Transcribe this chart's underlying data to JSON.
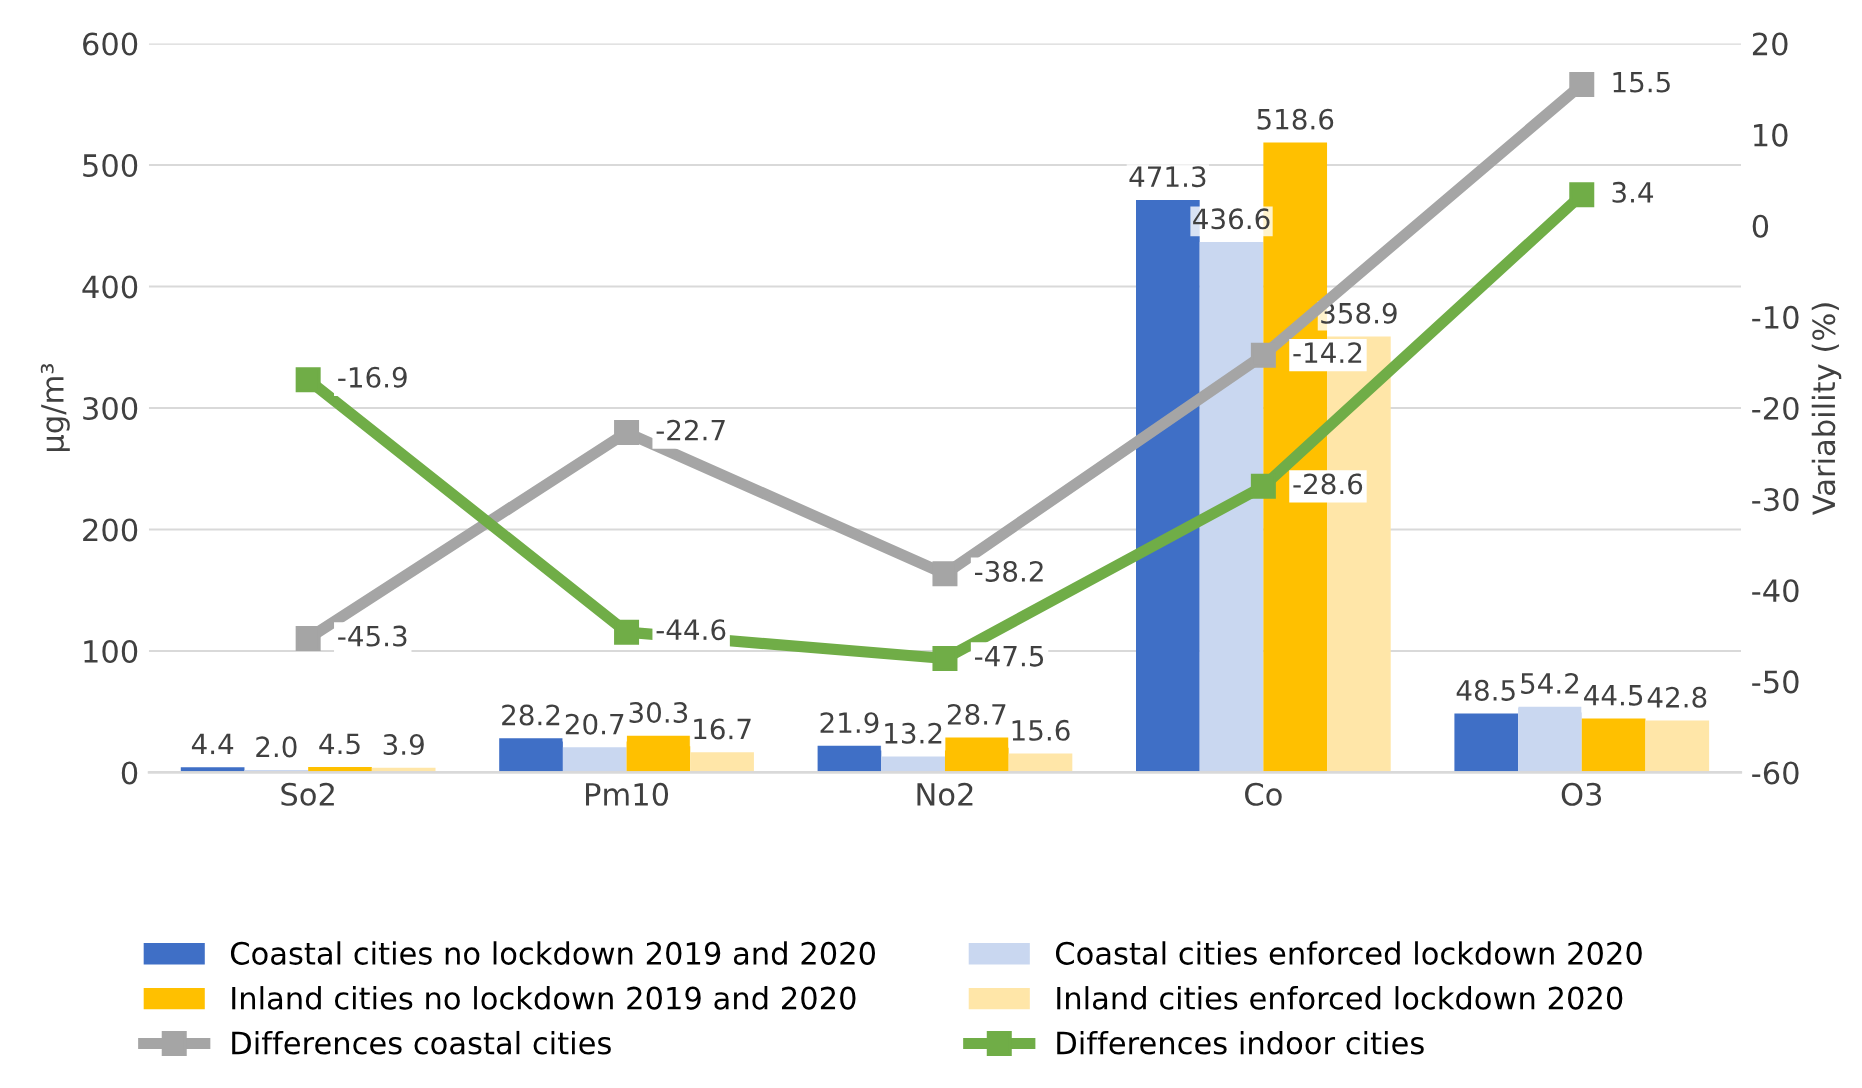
{
  "chart_data": {
    "type": "bar",
    "categories": [
      "So2",
      "Pm10",
      "No2",
      "Co",
      "O3"
    ],
    "ylabel": "µg/m³",
    "y2label": "Variability (%)",
    "ylim": [
      0,
      600
    ],
    "yticks": [
      0,
      100,
      200,
      300,
      400,
      500,
      600
    ],
    "y2lim": [
      -60,
      20
    ],
    "y2ticks": [
      -60,
      -50,
      -40,
      -30,
      -20,
      -10,
      0,
      10,
      20
    ],
    "grid": "y",
    "legend": "bottom",
    "data_labels": true,
    "marker": "square",
    "line_style": "solid",
    "series": [
      {
        "name": "Coastal cities no lockdown 2019 and 2020",
        "color": "#3f6fc6",
        "values": [
          4.4,
          28.2,
          21.9,
          471.3,
          48.5
        ]
      },
      {
        "name": "Coastal cities enforced lockdown 2020",
        "color": "#c9d7f0",
        "values": [
          2.0,
          20.7,
          13.2,
          436.6,
          54.2
        ],
        "value_labels": [
          "2.0",
          "20.7",
          "13.2",
          "436.6",
          "54.2"
        ]
      },
      {
        "name": "Inland cities no lockdown 2019 and 2020",
        "color": "#ffc000",
        "values": [
          4.5,
          30.3,
          28.7,
          518.6,
          44.5
        ]
      },
      {
        "name": "Inland cities enforced lockdown 2020",
        "color": "#ffe6a8",
        "values": [
          3.9,
          16.7,
          15.6,
          358.9,
          42.8
        ]
      },
      {
        "name": "Differences coastal cities",
        "type": "line",
        "axis": "y2",
        "color": "#a5a5a5",
        "values": [
          -45.3,
          -22.7,
          -38.2,
          -14.2,
          15.5
        ]
      },
      {
        "name": "Differences indoor cities",
        "type": "line",
        "axis": "y2",
        "color": "#70ad47",
        "values": [
          -16.9,
          -44.6,
          -47.5,
          -28.6,
          3.4
        ]
      }
    ]
  }
}
